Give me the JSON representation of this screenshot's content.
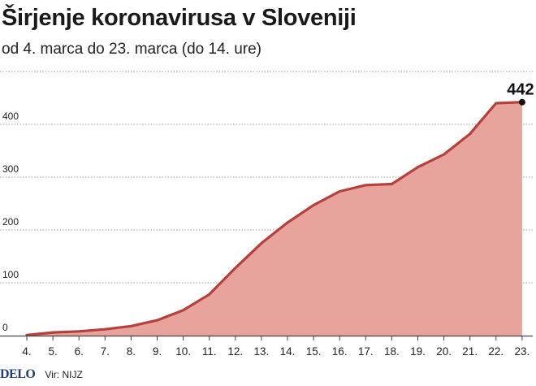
{
  "header": {
    "title": "Širjenje koronavirusa v Sloveniji",
    "subtitle": "od 4. marca do 23. marca (do 14. ure)"
  },
  "footer": {
    "logo": "DELO",
    "source": "Vir: NIJZ"
  },
  "colors": {
    "area_fill": "#e8a49c",
    "line": "#b5403c",
    "grid": "#9a9a9a"
  },
  "chart_data": {
    "type": "area",
    "title": "Širjenje koronavirusa v Sloveniji",
    "subtitle": "od 4. marca do 23. marca (do 14. ure)",
    "categories": [
      "4.",
      "5.",
      "6.",
      "7.",
      "8.",
      "9.",
      "10.",
      "11.",
      "12.",
      "13.",
      "14.",
      "15.",
      "16.",
      "17.",
      "18.",
      "19.",
      "20.",
      "21.",
      "22.",
      "23."
    ],
    "values": [
      1,
      6,
      8,
      12,
      18,
      29,
      48,
      78,
      128,
      175,
      214,
      247,
      273,
      285,
      287,
      319,
      343,
      382,
      440,
      442
    ],
    "yticks": [
      0,
      100,
      200,
      300,
      400
    ],
    "ylim": [
      0,
      500
    ],
    "grid": true,
    "annotation": {
      "label": "442",
      "index": 19
    }
  }
}
